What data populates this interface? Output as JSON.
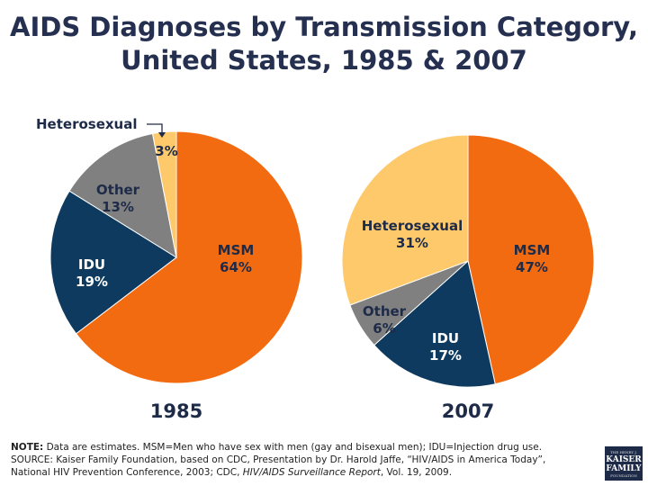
{
  "title_line1": "AIDS Diagnoses by Transmission Category,",
  "title_line2": "United States, 1985 & 2007",
  "chart_data": [
    {
      "type": "pie",
      "year": "1985",
      "slices": [
        {
          "label": "MSM",
          "value": 64,
          "display": "64%",
          "color": "#f26b10"
        },
        {
          "label": "IDU",
          "value": 19,
          "display": "19%",
          "color": "#0d3a5e"
        },
        {
          "label": "Other",
          "value": 13,
          "display": "13%",
          "color": "#808080"
        },
        {
          "label": "Heterosexual",
          "value": 3,
          "display": "3%",
          "color": "#fdc96a"
        }
      ]
    },
    {
      "type": "pie",
      "year": "2007",
      "slices": [
        {
          "label": "MSM",
          "value": 47,
          "display": "47%",
          "color": "#f26b10"
        },
        {
          "label": "IDU",
          "value": 17,
          "display": "17%",
          "color": "#0d3a5e"
        },
        {
          "label": "Other",
          "value": 6,
          "display": "6%",
          "color": "#808080"
        },
        {
          "label": "Heterosexual",
          "value": 31,
          "display": "31%",
          "color": "#fdc96a"
        }
      ]
    }
  ],
  "notes": {
    "note_label": "NOTE:",
    "note_text": " Data are estimates. MSM=Men who have sex with men (gay and bisexual men); IDU=Injection drug use.",
    "source_line1": "SOURCE: Kaiser Family Foundation, based on CDC, Presentation by Dr. Harold Jaffe, “HIV/AIDS in America Today”,",
    "source_line2a": "National HIV Prevention Conference, 2003; CDC, ",
    "source_line2_italic": "HIV/AIDS Surveillance Report",
    "source_line2b": ", Vol. 19, 2009."
  },
  "logo": {
    "line1": "THE HENRY J.",
    "line2": "KAISER",
    "line3": "FAMILY",
    "line4": "FOUNDATION"
  }
}
